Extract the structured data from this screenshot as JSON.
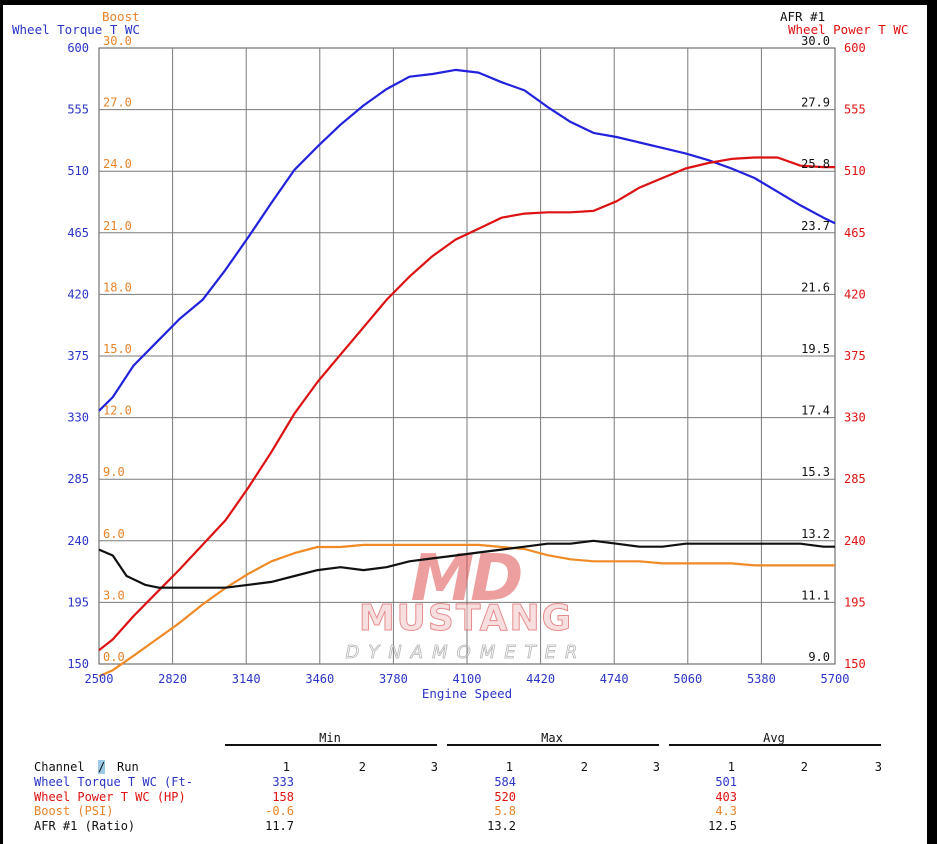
{
  "chart_data": {
    "type": "line",
    "xlabel": "Engine Speed",
    "x_ticks": [
      2500,
      2820,
      3140,
      3460,
      3780,
      4100,
      4420,
      4740,
      5060,
      5380,
      5700
    ],
    "xlim": [
      2500,
      5700
    ],
    "axes": {
      "torque": {
        "title": "Wheel Torque T WC",
        "ticks": [
          600,
          555,
          510,
          465,
          420,
          375,
          330,
          285,
          240,
          195,
          150
        ],
        "ylim": [
          150,
          600
        ]
      },
      "boost": {
        "title": "Boost",
        "ticks": [
          "30.0",
          "27.0",
          "24.0",
          "21.0",
          "18.0",
          "15.0",
          "12.0",
          "9.0",
          "6.0",
          "3.0",
          "0.0"
        ],
        "ylim": [
          0,
          30
        ]
      },
      "afr": {
        "title": "AFR #1",
        "ticks": [
          "30.0",
          "27.9",
          "25.8",
          "23.7",
          "21.6",
          "19.5",
          "17.4",
          "15.3",
          "13.2",
          "11.1",
          "9.0"
        ],
        "ylim": [
          9,
          30
        ]
      },
      "power": {
        "title": "Wheel Power T WC",
        "ticks": [
          600,
          555,
          510,
          465,
          420,
          375,
          330,
          285,
          240,
          195,
          150
        ],
        "ylim": [
          150,
          600
        ]
      }
    },
    "series": [
      {
        "name": "Wheel Torque T WC",
        "axis": "torque",
        "color": "#2222dd",
        "x": [
          2500,
          2560,
          2650,
          2750,
          2850,
          2950,
          3050,
          3150,
          3250,
          3350,
          3450,
          3550,
          3650,
          3750,
          3850,
          3950,
          4050,
          4150,
          4250,
          4350,
          4450,
          4550,
          4650,
          4750,
          4850,
          4950,
          5050,
          5150,
          5250,
          5350,
          5450,
          5550,
          5650,
          5700
        ],
        "y": [
          335,
          345,
          368,
          385,
          402,
          416,
          438,
          462,
          487,
          511,
          528,
          544,
          558,
          570,
          579,
          581,
          584,
          582,
          575,
          569,
          557,
          546,
          538,
          535,
          531,
          527,
          523,
          518,
          512,
          505,
          495,
          485,
          476,
          472
        ]
      },
      {
        "name": "Wheel Power T WC",
        "axis": "power",
        "color": "#dd1111",
        "x": [
          2500,
          2560,
          2650,
          2750,
          2850,
          2950,
          3050,
          3150,
          3250,
          3350,
          3450,
          3550,
          3650,
          3750,
          3850,
          3950,
          4050,
          4150,
          4250,
          4350,
          4450,
          4550,
          4650,
          4750,
          4850,
          4950,
          5050,
          5150,
          5250,
          5350,
          5450,
          5550,
          5650,
          5700
        ],
        "y": [
          160,
          168,
          185,
          202,
          219,
          237,
          255,
          279,
          305,
          333,
          356,
          376,
          396,
          416,
          433,
          448,
          460,
          468,
          476,
          479,
          480,
          480,
          481,
          488,
          498,
          505,
          512,
          516,
          519,
          520,
          520,
          514,
          513,
          513
        ]
      },
      {
        "name": "Boost",
        "axis": "boost",
        "color": "#f08a24",
        "x": [
          2500,
          2560,
          2650,
          2750,
          2850,
          2950,
          3050,
          3150,
          3250,
          3350,
          3450,
          3550,
          3650,
          3750,
          3850,
          3950,
          4050,
          4150,
          4250,
          4350,
          4450,
          4550,
          4650,
          4750,
          4850,
          4950,
          5050,
          5150,
          5250,
          5350,
          5450,
          5550,
          5650,
          5700
        ],
        "y": [
          -0.6,
          -0.3,
          0.4,
          1.2,
          2.0,
          2.9,
          3.7,
          4.4,
          5.0,
          5.4,
          5.7,
          5.7,
          5.8,
          5.8,
          5.8,
          5.8,
          5.8,
          5.8,
          5.7,
          5.6,
          5.3,
          5.1,
          5.0,
          5.0,
          5.0,
          4.9,
          4.9,
          4.9,
          4.9,
          4.8,
          4.8,
          4.8,
          4.8,
          4.8
        ]
      },
      {
        "name": "AFR #1",
        "axis": "afr",
        "color": "#111111",
        "x": [
          2500,
          2560,
          2620,
          2700,
          2760,
          2850,
          2950,
          3050,
          3150,
          3250,
          3350,
          3450,
          3550,
          3650,
          3750,
          3850,
          3950,
          4050,
          4150,
          4250,
          4350,
          4450,
          4550,
          4650,
          4750,
          4850,
          4950,
          5050,
          5150,
          5250,
          5350,
          5450,
          5550,
          5650,
          5700
        ],
        "y": [
          12.9,
          12.7,
          12.0,
          11.7,
          11.6,
          11.6,
          11.6,
          11.6,
          11.7,
          11.8,
          12.0,
          12.2,
          12.3,
          12.2,
          12.3,
          12.5,
          12.6,
          12.7,
          12.8,
          12.9,
          13.0,
          13.1,
          13.1,
          13.2,
          13.1,
          13.0,
          13.0,
          13.1,
          13.1,
          13.1,
          13.1,
          13.1,
          13.1,
          13.0,
          13.0
        ]
      }
    ]
  },
  "logo": {
    "big": "MD",
    "name": "MUSTANG",
    "tagline": "DYNAMOMETER"
  },
  "table": {
    "group_headers": [
      "Min",
      "Max",
      "Avg"
    ],
    "channel_header": "Channel",
    "slash": "/",
    "run_header": "Run",
    "run_labels": [
      "1",
      "2",
      "3",
      "1",
      "2",
      "3",
      "1",
      "2",
      "3"
    ],
    "rows": [
      {
        "label": "Wheel Torque T WC (Ft-",
        "min": "333",
        "max": "584",
        "avg": "501",
        "color": "#2b35c9"
      },
      {
        "label": "Wheel Power T WC (HP)",
        "min": "158",
        "max": "520",
        "avg": "403",
        "color": "#e01010"
      },
      {
        "label": "Boost (PSI)",
        "min": "-0.6",
        "max": "5.8",
        "avg": "4.3",
        "color": "#e8832a"
      },
      {
        "label": "AFR #1 (Ratio)",
        "min": "11.7",
        "max": "13.2",
        "avg": "12.5",
        "color": "#111111"
      }
    ]
  }
}
